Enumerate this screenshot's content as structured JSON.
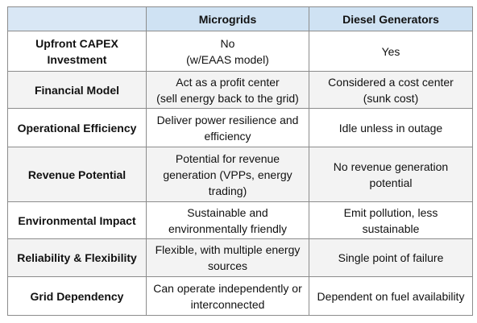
{
  "table": {
    "columns": [
      "",
      "Microgrids",
      "Diesel Generators"
    ],
    "rows": [
      {
        "label": "Upfront CAPEX Investment",
        "microgrids": "No\n(w/EAAS model)",
        "diesel": "Yes"
      },
      {
        "label": "Financial Model",
        "microgrids": "Act as a profit center\n(sell energy back to the grid)",
        "diesel": "Considered a cost center\n(sunk cost)"
      },
      {
        "label": "Operational Efficiency",
        "microgrids": "Deliver power resilience and efficiency",
        "diesel": "Idle unless in outage"
      },
      {
        "label": "Revenue Potential",
        "microgrids": "Potential for revenue generation (VPPs, energy trading)",
        "diesel": "No revenue generation potential"
      },
      {
        "label": "Environmental Impact",
        "microgrids": "Sustainable and environmentally friendly",
        "diesel": "Emit pollution, less sustainable"
      },
      {
        "label": "Reliability & Flexibility",
        "microgrids": "Flexible, with multiple energy sources",
        "diesel": "Single point of failure"
      },
      {
        "label": "Grid Dependency",
        "microgrids": "Can operate independently or interconnected",
        "diesel": "Dependent on fuel availability"
      }
    ]
  }
}
